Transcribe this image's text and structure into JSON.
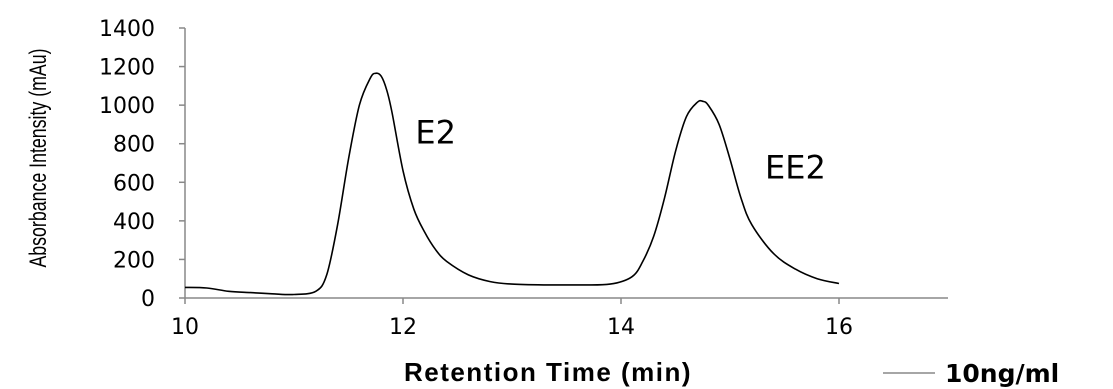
{
  "chart_data": {
    "type": "line",
    "xlabel": "Retention Time (min)",
    "ylabel": "Absorbance Intensity   (mAu)",
    "xlim": [
      10,
      17
    ],
    "ylim": [
      0,
      1400
    ],
    "xticks": [
      "10",
      "12",
      "14",
      "16"
    ],
    "yticks": [
      "0",
      "200",
      "400",
      "600",
      "800",
      "1000",
      "1200",
      "1400"
    ],
    "grid": false,
    "legend_position": "bottom-right",
    "annotations": [
      {
        "text": "E2",
        "x": 12.3,
        "y": 800
      },
      {
        "text": "EE2",
        "x": 15.6,
        "y": 620
      }
    ],
    "series": [
      {
        "name": "10ng/ml",
        "color": "#000000",
        "x": [
          10.0,
          10.2,
          10.4,
          10.6,
          10.8,
          11.0,
          11.2,
          11.3,
          11.4,
          11.5,
          11.6,
          11.7,
          11.75,
          11.8,
          11.85,
          11.9,
          12.0,
          12.1,
          12.2,
          12.3,
          12.4,
          12.6,
          12.8,
          13.0,
          13.3,
          13.6,
          13.9,
          14.1,
          14.2,
          14.3,
          14.4,
          14.5,
          14.6,
          14.7,
          14.75,
          14.8,
          14.9,
          15.0,
          15.1,
          15.2,
          15.4,
          15.6,
          15.8,
          16.0
        ],
        "y": [
          55,
          52,
          35,
          28,
          22,
          18,
          35,
          120,
          380,
          720,
          1000,
          1140,
          1165,
          1150,
          1080,
          960,
          660,
          460,
          340,
          250,
          190,
          120,
          85,
          72,
          68,
          68,
          72,
          110,
          190,
          320,
          520,
          760,
          940,
          1015,
          1020,
          1000,
          900,
          720,
          520,
          380,
          230,
          150,
          100,
          75
        ]
      }
    ]
  }
}
